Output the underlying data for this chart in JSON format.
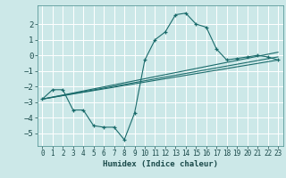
{
  "xlabel": "Humidex (Indice chaleur)",
  "background_color": "#cce8e8",
  "grid_color": "#b8d8d8",
  "line_color": "#1a6b6b",
  "xlim": [
    -0.5,
    23.5
  ],
  "ylim": [
    -5.8,
    3.2
  ],
  "yticks": [
    -5,
    -4,
    -3,
    -2,
    -1,
    0,
    1,
    2
  ],
  "xticks": [
    0,
    1,
    2,
    3,
    4,
    5,
    6,
    7,
    8,
    9,
    10,
    11,
    12,
    13,
    14,
    15,
    16,
    17,
    18,
    19,
    20,
    21,
    22,
    23
  ],
  "main_series": {
    "x": [
      0,
      1,
      2,
      3,
      4,
      5,
      6,
      7,
      8,
      9,
      10,
      11,
      12,
      13,
      14,
      15,
      16,
      17,
      18,
      19,
      20,
      21,
      22,
      23
    ],
    "y": [
      -2.8,
      -2.2,
      -2.2,
      -3.5,
      -3.5,
      -4.5,
      -4.6,
      -4.6,
      -5.4,
      -3.7,
      -0.3,
      1.0,
      1.5,
      2.6,
      2.7,
      2.0,
      1.8,
      0.4,
      -0.3,
      -0.2,
      -0.1,
      0.0,
      -0.1,
      -0.3
    ]
  },
  "trend_lines": [
    {
      "x": [
        0,
        23
      ],
      "y": [
        -2.8,
        -0.3
      ]
    },
    {
      "x": [
        0,
        23
      ],
      "y": [
        -2.8,
        -0.1
      ]
    },
    {
      "x": [
        0,
        23
      ],
      "y": [
        -2.8,
        0.2
      ]
    }
  ]
}
